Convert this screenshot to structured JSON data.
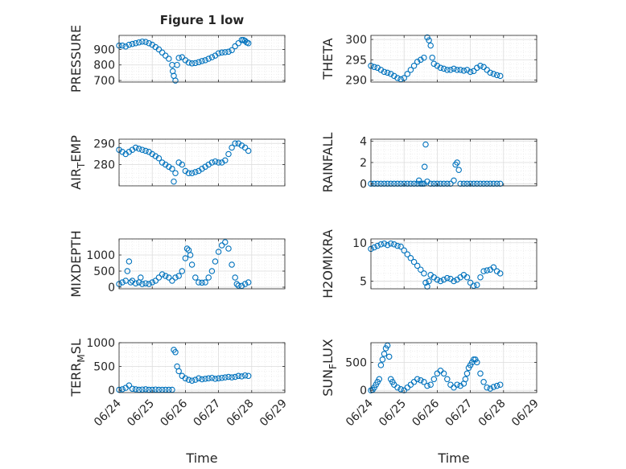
{
  "figure": {
    "title": "Figure 1 low"
  },
  "chart_data": [
    {
      "id": "pressure",
      "type": "scatter",
      "title": "Figure 1 low",
      "ylabel": "PRESSURE",
      "xlim": [
        "06/24",
        "06/29"
      ],
      "ylim": [
        690,
        990
      ],
      "yticks": [
        700,
        800,
        900
      ],
      "x_ticklabels": [],
      "xlabel": "",
      "x": [
        0.0,
        0.1,
        0.2,
        0.3,
        0.4,
        0.5,
        0.6,
        0.7,
        0.8,
        0.9,
        1.0,
        1.1,
        1.2,
        1.3,
        1.4,
        1.5,
        1.6,
        1.62,
        1.65,
        1.7,
        1.75,
        1.8,
        1.9,
        2.0,
        2.1,
        2.2,
        2.3,
        2.4,
        2.5,
        2.6,
        2.7,
        2.8,
        2.9,
        3.0,
        3.1,
        3.2,
        3.3,
        3.4,
        3.5,
        3.6,
        3.7,
        3.75,
        3.8,
        3.85,
        3.9
      ],
      "y": [
        925,
        925,
        918,
        930,
        935,
        940,
        945,
        950,
        948,
        940,
        930,
        915,
        900,
        880,
        860,
        840,
        800,
        760,
        730,
        700,
        800,
        845,
        850,
        830,
        815,
        810,
        812,
        818,
        825,
        830,
        840,
        850,
        860,
        875,
        880,
        882,
        885,
        895,
        920,
        940,
        960,
        960,
        955,
        945,
        940
      ]
    },
    {
      "id": "theta",
      "type": "scatter",
      "ylabel": "THETA",
      "xlim": [
        "06/24",
        "06/29"
      ],
      "ylim": [
        289.5,
        301
      ],
      "yticks": [
        290,
        295,
        300
      ],
      "x_ticklabels": [],
      "xlabel": "",
      "x": [
        0.0,
        0.1,
        0.2,
        0.3,
        0.4,
        0.5,
        0.6,
        0.7,
        0.8,
        0.9,
        1.0,
        1.1,
        1.2,
        1.3,
        1.4,
        1.5,
        1.6,
        1.7,
        1.75,
        1.8,
        1.85,
        1.9,
        2.0,
        2.1,
        2.2,
        2.3,
        2.4,
        2.5,
        2.6,
        2.7,
        2.8,
        2.9,
        3.0,
        3.1,
        3.2,
        3.3,
        3.4,
        3.5,
        3.6,
        3.7,
        3.8,
        3.9
      ],
      "y": [
        293.5,
        293.2,
        293.0,
        292.5,
        292.0,
        291.8,
        291.5,
        291.0,
        290.5,
        290.2,
        290.5,
        291.5,
        292.5,
        293.5,
        294.5,
        295.0,
        295.5,
        300.5,
        299.8,
        298.5,
        295.5,
        294.0,
        293.5,
        293.0,
        292.8,
        292.5,
        292.5,
        292.8,
        292.5,
        292.5,
        292.3,
        292.5,
        292.0,
        292.2,
        293.0,
        293.5,
        293.2,
        292.5,
        291.8,
        291.5,
        291.2,
        291.0
      ]
    },
    {
      "id": "airtemp",
      "type": "scatter",
      "ylabel": "AIR",
      "ylabel_sub": "T",
      "ylabel_rest": "EMP",
      "xlim": [
        "06/24",
        "06/29"
      ],
      "ylim": [
        270,
        292
      ],
      "yticks": [
        280,
        290
      ],
      "x_ticklabels": [],
      "xlabel": "",
      "x": [
        0.0,
        0.1,
        0.2,
        0.3,
        0.4,
        0.5,
        0.6,
        0.7,
        0.8,
        0.9,
        1.0,
        1.1,
        1.2,
        1.3,
        1.4,
        1.5,
        1.6,
        1.65,
        1.7,
        1.8,
        1.9,
        2.0,
        2.1,
        2.2,
        2.3,
        2.4,
        2.5,
        2.6,
        2.7,
        2.8,
        2.9,
        3.0,
        3.1,
        3.2,
        3.3,
        3.4,
        3.5,
        3.6,
        3.7,
        3.8,
        3.9
      ],
      "y": [
        287,
        286,
        285,
        286,
        287,
        288,
        287.5,
        287,
        286.5,
        286,
        285,
        284,
        283,
        281,
        280,
        279,
        278,
        272,
        276,
        281,
        280,
        277,
        276,
        276,
        276.5,
        277,
        278,
        279,
        280,
        281,
        281.5,
        281,
        281,
        282,
        285,
        288,
        290,
        290,
        289,
        288,
        286.5
      ]
    },
    {
      "id": "rainfall",
      "type": "scatter",
      "ylabel": "RAINFALL",
      "xlim": [
        "06/24",
        "06/29"
      ],
      "ylim": [
        -0.2,
        4.2
      ],
      "yticks": [
        0,
        2,
        4
      ],
      "x_ticklabels": [],
      "xlabel": "",
      "x": [
        0.0,
        0.1,
        0.2,
        0.3,
        0.4,
        0.5,
        0.6,
        0.7,
        0.8,
        0.9,
        1.0,
        1.1,
        1.2,
        1.3,
        1.4,
        1.45,
        1.5,
        1.55,
        1.6,
        1.62,
        1.65,
        1.7,
        1.8,
        1.9,
        2.0,
        2.1,
        2.2,
        2.3,
        2.4,
        2.5,
        2.55,
        2.6,
        2.65,
        2.7,
        2.8,
        2.9,
        3.0,
        3.1,
        3.2,
        3.3,
        3.4,
        3.5,
        3.6,
        3.7,
        3.8,
        3.9
      ],
      "y": [
        0,
        0,
        0,
        0,
        0,
        0,
        0,
        0,
        0,
        0,
        0,
        0,
        0,
        0,
        0,
        0.3,
        0,
        0,
        0,
        1.6,
        3.7,
        0.2,
        0,
        0,
        0,
        0,
        0,
        0,
        0,
        0.3,
        1.8,
        2.0,
        1.3,
        0,
        0,
        0,
        0,
        0,
        0,
        0,
        0,
        0,
        0,
        0,
        0,
        0
      ]
    },
    {
      "id": "mixdepth",
      "type": "scatter",
      "ylabel": "MIXDEPTH",
      "xlim": [
        "06/24",
        "06/29"
      ],
      "ylim": [
        -50,
        1500
      ],
      "yticks": [
        0,
        500,
        1000
      ],
      "x_ticklabels": [],
      "xlabel": "",
      "x": [
        0.0,
        0.1,
        0.2,
        0.25,
        0.3,
        0.35,
        0.4,
        0.5,
        0.6,
        0.65,
        0.7,
        0.8,
        0.9,
        1.0,
        1.1,
        1.2,
        1.3,
        1.4,
        1.5,
        1.6,
        1.7,
        1.8,
        1.9,
        2.0,
        2.05,
        2.1,
        2.15,
        2.2,
        2.3,
        2.4,
        2.5,
        2.6,
        2.7,
        2.8,
        2.9,
        3.0,
        3.1,
        3.2,
        3.3,
        3.4,
        3.5,
        3.55,
        3.6,
        3.7,
        3.8,
        3.9
      ],
      "y": [
        100,
        150,
        200,
        500,
        800,
        150,
        200,
        120,
        150,
        300,
        100,
        120,
        100,
        150,
        200,
        300,
        400,
        350,
        300,
        200,
        300,
        350,
        500,
        900,
        1200,
        1150,
        1000,
        700,
        300,
        150,
        140,
        150,
        300,
        500,
        800,
        1100,
        1300,
        1400,
        1200,
        700,
        300,
        100,
        50,
        40,
        100,
        150
      ]
    },
    {
      "id": "h2omixra",
      "type": "scatter",
      "ylabel": "H2OMIXRA",
      "xlim": [
        "06/24",
        "06/29"
      ],
      "ylim": [
        4,
        10.5
      ],
      "yticks": [
        5,
        10
      ],
      "x_ticklabels": [],
      "xlabel": "",
      "x": [
        0.0,
        0.1,
        0.2,
        0.3,
        0.4,
        0.5,
        0.6,
        0.7,
        0.8,
        0.9,
        1.0,
        1.1,
        1.2,
        1.3,
        1.4,
        1.5,
        1.6,
        1.65,
        1.7,
        1.75,
        1.8,
        1.9,
        2.0,
        2.1,
        2.2,
        2.3,
        2.4,
        2.5,
        2.6,
        2.7,
        2.8,
        2.9,
        3.0,
        3.1,
        3.2,
        3.3,
        3.4,
        3.5,
        3.6,
        3.7,
        3.8,
        3.9
      ],
      "y": [
        9.2,
        9.4,
        9.6,
        9.8,
        9.9,
        9.7,
        9.9,
        9.8,
        9.6,
        9.5,
        9.0,
        8.5,
        8.0,
        7.5,
        7.0,
        6.5,
        6.0,
        4.8,
        4.3,
        5.0,
        5.8,
        5.5,
        5.2,
        5.0,
        5.2,
        5.4,
        5.3,
        5.0,
        5.2,
        5.5,
        5.8,
        5.5,
        4.8,
        4.4,
        4.5,
        5.5,
        6.3,
        6.4,
        6.5,
        6.8,
        6.3,
        6.0
      ]
    },
    {
      "id": "terrmsl",
      "type": "scatter",
      "ylabel": "TERR",
      "ylabel_sub": "M",
      "ylabel_rest": "SL",
      "xlim": [
        "06/24",
        "06/29"
      ],
      "ylim": [
        -50,
        1000
      ],
      "yticks": [
        0,
        500,
        1000
      ],
      "x_ticklabels": [
        "06/24",
        "06/25",
        "06/26",
        "06/27",
        "06/28",
        "06/29"
      ],
      "xlabel": "Time",
      "x": [
        0.0,
        0.1,
        0.2,
        0.3,
        0.4,
        0.5,
        0.6,
        0.7,
        0.8,
        0.9,
        1.0,
        1.1,
        1.2,
        1.3,
        1.4,
        1.5,
        1.6,
        1.65,
        1.7,
        1.75,
        1.8,
        1.9,
        2.0,
        2.1,
        2.2,
        2.3,
        2.4,
        2.5,
        2.6,
        2.7,
        2.8,
        2.9,
        3.0,
        3.1,
        3.2,
        3.3,
        3.4,
        3.5,
        3.6,
        3.7,
        3.8,
        3.9
      ],
      "y": [
        10,
        20,
        50,
        100,
        30,
        20,
        10,
        15,
        20,
        10,
        10,
        15,
        10,
        10,
        10,
        10,
        10,
        850,
        800,
        500,
        400,
        300,
        250,
        220,
        200,
        220,
        250,
        230,
        240,
        250,
        260,
        240,
        250,
        260,
        270,
        280,
        270,
        280,
        300,
        290,
        310,
        300
      ]
    },
    {
      "id": "sunflux",
      "type": "scatter",
      "ylabel": "SUN",
      "ylabel_sub": "F",
      "ylabel_rest": "LUX",
      "xlim": [
        "06/24",
        "06/29"
      ],
      "ylim": [
        -40,
        850
      ],
      "yticks": [
        0,
        500
      ],
      "x_ticklabels": [
        "06/24",
        "06/25",
        "06/26",
        "06/27",
        "06/28",
        "06/29"
      ],
      "xlabel": "Time",
      "x": [
        0.0,
        0.05,
        0.1,
        0.15,
        0.2,
        0.25,
        0.3,
        0.35,
        0.4,
        0.45,
        0.5,
        0.55,
        0.6,
        0.65,
        0.7,
        0.8,
        0.9,
        1.0,
        1.1,
        1.2,
        1.3,
        1.4,
        1.5,
        1.6,
        1.7,
        1.8,
        1.9,
        2.0,
        2.1,
        2.2,
        2.3,
        2.4,
        2.5,
        2.6,
        2.7,
        2.8,
        2.85,
        2.9,
        2.95,
        3.0,
        3.05,
        3.1,
        3.15,
        3.2,
        3.3,
        3.4,
        3.5,
        3.6,
        3.7,
        3.8,
        3.9
      ],
      "y": [
        0,
        10,
        50,
        100,
        150,
        200,
        450,
        550,
        650,
        750,
        800,
        600,
        200,
        150,
        100,
        50,
        20,
        0,
        50,
        100,
        150,
        200,
        180,
        150,
        80,
        100,
        200,
        300,
        350,
        300,
        200,
        100,
        50,
        100,
        80,
        120,
        200,
        300,
        400,
        450,
        500,
        550,
        550,
        500,
        300,
        150,
        50,
        30,
        60,
        80,
        100
      ]
    }
  ]
}
